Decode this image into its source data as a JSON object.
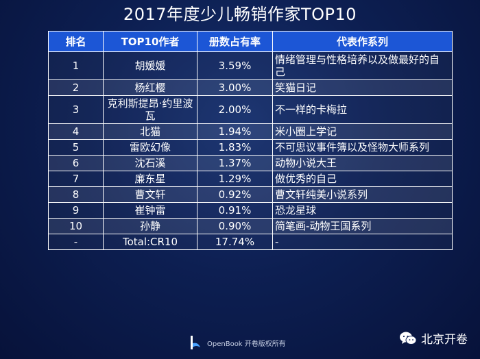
{
  "chart_data": {
    "type": "table",
    "title": "2017年度少儿畅销作家TOP10",
    "columns": [
      "排名",
      "TOP10作者",
      "册数占有率",
      "代表作系列"
    ],
    "rows": [
      {
        "rank": "1",
        "author": "胡媛媛",
        "share": "3.59%",
        "series": "情绪管理与性格培养以及做最好的自己"
      },
      {
        "rank": "2",
        "author": "杨红樱",
        "share": "3.00%",
        "series": "笑猫日记"
      },
      {
        "rank": "3",
        "author": "克利斯提昂·约里波瓦",
        "share": "2.00%",
        "series": "不一样的卡梅拉"
      },
      {
        "rank": "4",
        "author": "北猫",
        "share": "1.94%",
        "series": "米小圈上学记"
      },
      {
        "rank": "5",
        "author": "雷欧幻像",
        "share": "1.83%",
        "series": "不可思议事件簿以及怪物大师系列"
      },
      {
        "rank": "6",
        "author": "沈石溪",
        "share": "1.37%",
        "series": "动物小说大王"
      },
      {
        "rank": "7",
        "author": "廉东星",
        "share": "1.29%",
        "series": "做优秀的自己"
      },
      {
        "rank": "8",
        "author": "曹文轩",
        "share": "0.92%",
        "series": "曹文轩纯美小说系列"
      },
      {
        "rank": "9",
        "author": "崔钟雷",
        "share": "0.91%",
        "series": "恐龙星球"
      },
      {
        "rank": "10",
        "author": "孙静",
        "share": "0.90%",
        "series": "简笔画-动物王国系列"
      },
      {
        "rank": "-",
        "author": "Total:CR10",
        "share": "17.74%",
        "series": "-"
      }
    ]
  },
  "footer": {
    "copyright": "OpenBook 开卷版权所有"
  },
  "brand": {
    "name": "北京开卷"
  },
  "colors": {
    "header_bg": "#1c56d6",
    "background": "#0d1f52"
  }
}
